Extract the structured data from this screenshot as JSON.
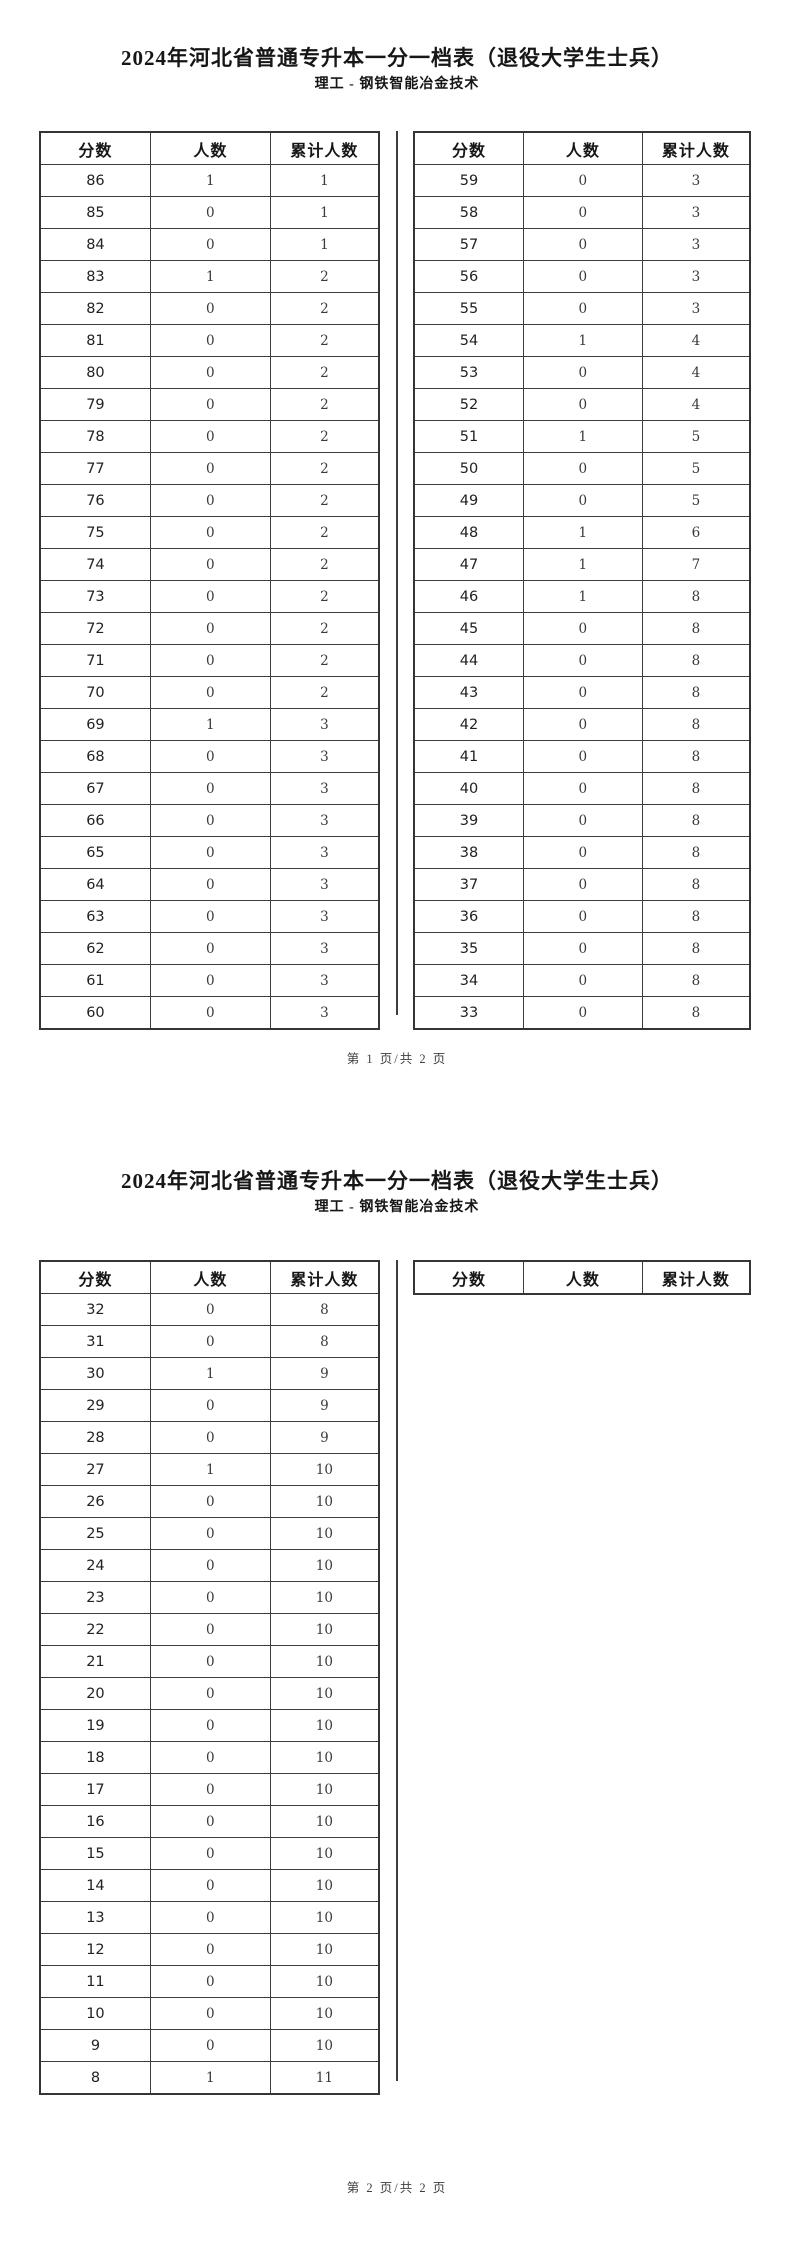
{
  "document": {
    "pages": [
      {
        "title": "2024年河北省普通专升本一分一档表（退役大学生士兵）",
        "subtitle": "理工 - 钢铁智能冶金技术",
        "footer": "第 1 页/共 2 页",
        "tables": [
          {
            "headers": [
              "分数",
              "人数",
              "累计人数"
            ],
            "rows": [
              [
                "86",
                "1",
                "1"
              ],
              [
                "85",
                "0",
                "1"
              ],
              [
                "84",
                "0",
                "1"
              ],
              [
                "83",
                "1",
                "2"
              ],
              [
                "82",
                "0",
                "2"
              ],
              [
                "81",
                "0",
                "2"
              ],
              [
                "80",
                "0",
                "2"
              ],
              [
                "79",
                "0",
                "2"
              ],
              [
                "78",
                "0",
                "2"
              ],
              [
                "77",
                "0",
                "2"
              ],
              [
                "76",
                "0",
                "2"
              ],
              [
                "75",
                "0",
                "2"
              ],
              [
                "74",
                "0",
                "2"
              ],
              [
                "73",
                "0",
                "2"
              ],
              [
                "72",
                "0",
                "2"
              ],
              [
                "71",
                "0",
                "2"
              ],
              [
                "70",
                "0",
                "2"
              ],
              [
                "69",
                "1",
                "3"
              ],
              [
                "68",
                "0",
                "3"
              ],
              [
                "67",
                "0",
                "3"
              ],
              [
                "66",
                "0",
                "3"
              ],
              [
                "65",
                "0",
                "3"
              ],
              [
                "64",
                "0",
                "3"
              ],
              [
                "63",
                "0",
                "3"
              ],
              [
                "62",
                "0",
                "3"
              ],
              [
                "61",
                "0",
                "3"
              ],
              [
                "60",
                "0",
                "3"
              ]
            ]
          },
          {
            "headers": [
              "分数",
              "人数",
              "累计人数"
            ],
            "rows": [
              [
                "59",
                "0",
                "3"
              ],
              [
                "58",
                "0",
                "3"
              ],
              [
                "57",
                "0",
                "3"
              ],
              [
                "56",
                "0",
                "3"
              ],
              [
                "55",
                "0",
                "3"
              ],
              [
                "54",
                "1",
                "4"
              ],
              [
                "53",
                "0",
                "4"
              ],
              [
                "52",
                "0",
                "4"
              ],
              [
                "51",
                "1",
                "5"
              ],
              [
                "50",
                "0",
                "5"
              ],
              [
                "49",
                "0",
                "5"
              ],
              [
                "48",
                "1",
                "6"
              ],
              [
                "47",
                "1",
                "7"
              ],
              [
                "46",
                "1",
                "8"
              ],
              [
                "45",
                "0",
                "8"
              ],
              [
                "44",
                "0",
                "8"
              ],
              [
                "43",
                "0",
                "8"
              ],
              [
                "42",
                "0",
                "8"
              ],
              [
                "41",
                "0",
                "8"
              ],
              [
                "40",
                "0",
                "8"
              ],
              [
                "39",
                "0",
                "8"
              ],
              [
                "38",
                "0",
                "8"
              ],
              [
                "37",
                "0",
                "8"
              ],
              [
                "36",
                "0",
                "8"
              ],
              [
                "35",
                "0",
                "8"
              ],
              [
                "34",
                "0",
                "8"
              ],
              [
                "33",
                "0",
                "8"
              ]
            ]
          }
        ]
      },
      {
        "title": "2024年河北省普通专升本一分一档表（退役大学生士兵）",
        "subtitle": "理工 - 钢铁智能冶金技术",
        "footer": "第 2 页/共 2 页",
        "tables": [
          {
            "headers": [
              "分数",
              "人数",
              "累计人数"
            ],
            "rows": [
              [
                "32",
                "0",
                "8"
              ],
              [
                "31",
                "0",
                "8"
              ],
              [
                "30",
                "1",
                "9"
              ],
              [
                "29",
                "0",
                "9"
              ],
              [
                "28",
                "0",
                "9"
              ],
              [
                "27",
                "1",
                "10"
              ],
              [
                "26",
                "0",
                "10"
              ],
              [
                "25",
                "0",
                "10"
              ],
              [
                "24",
                "0",
                "10"
              ],
              [
                "23",
                "0",
                "10"
              ],
              [
                "22",
                "0",
                "10"
              ],
              [
                "21",
                "0",
                "10"
              ],
              [
                "20",
                "0",
                "10"
              ],
              [
                "19",
                "0",
                "10"
              ],
              [
                "18",
                "0",
                "10"
              ],
              [
                "17",
                "0",
                "10"
              ],
              [
                "16",
                "0",
                "10"
              ],
              [
                "15",
                "0",
                "10"
              ],
              [
                "14",
                "0",
                "10"
              ],
              [
                "13",
                "0",
                "10"
              ],
              [
                "12",
                "0",
                "10"
              ],
              [
                "11",
                "0",
                "10"
              ],
              [
                "10",
                "0",
                "10"
              ],
              [
                "9",
                "0",
                "10"
              ],
              [
                "8",
                "1",
                "11"
              ]
            ]
          },
          {
            "headers": [
              "分数",
              "人数",
              "累计人数"
            ],
            "rows": []
          }
        ]
      }
    ]
  }
}
